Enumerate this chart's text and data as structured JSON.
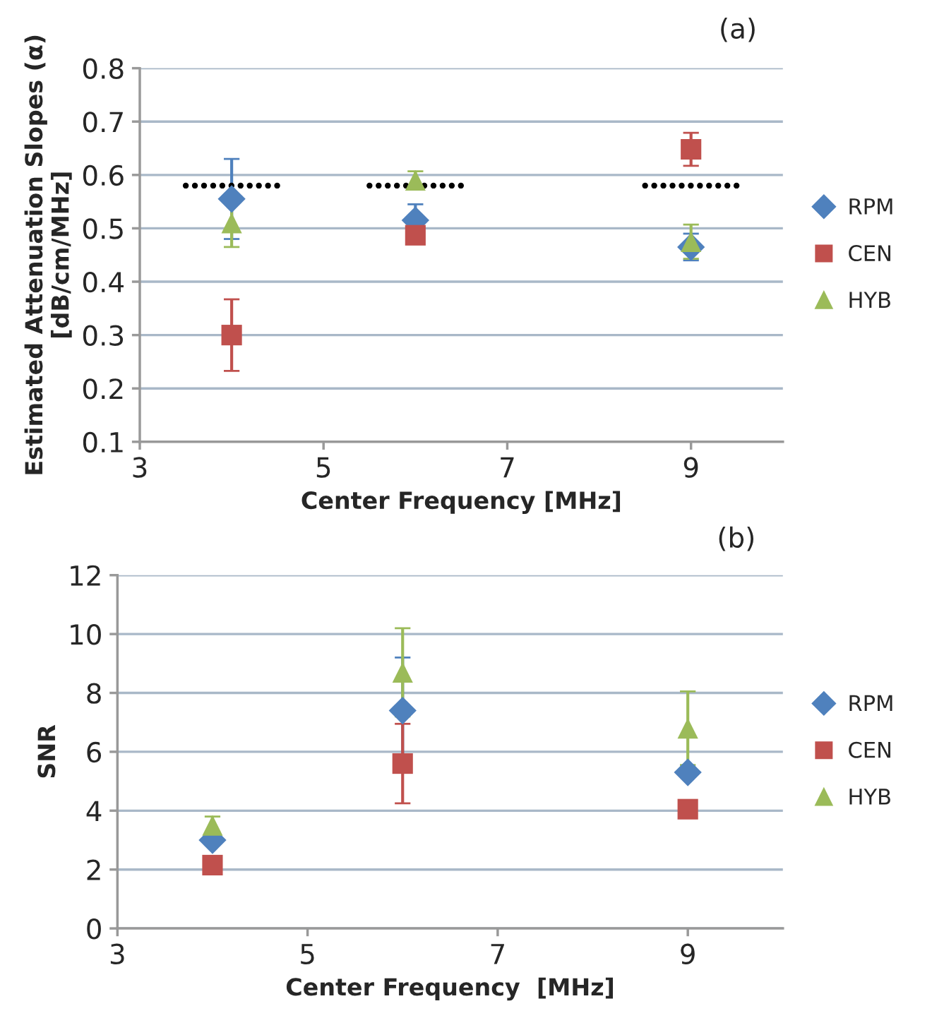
{
  "chart_data": [
    {
      "type": "scatter",
      "annotations": [
        "(a)"
      ],
      "xlabel": "Center Frequency [MHz]",
      "ylabel": "Estimated Attenuation Slopes (α)\n[dB/cm/MHz]",
      "x": [
        4,
        6,
        9
      ],
      "xlim": [
        3,
        10
      ],
      "xticks": [
        3,
        5,
        7,
        9
      ],
      "ylim": [
        0.1,
        0.8
      ],
      "yticks": [
        0.1,
        0.2,
        0.3,
        0.4,
        0.5,
        0.6,
        0.7,
        0.8
      ],
      "grid": "y",
      "legend": "right",
      "series": [
        {
          "name": "RPM",
          "color": "#4f81bd",
          "marker": "diamond",
          "values": [
            0.555,
            0.515,
            0.465
          ],
          "errors": [
            0.075,
            0.03,
            0.025
          ]
        },
        {
          "name": "CEN",
          "color": "#c0504d",
          "marker": "square",
          "values": [
            0.3,
            0.487,
            0.648
          ],
          "errors": [
            0.067,
            null,
            0.031
          ]
        },
        {
          "name": "HYB",
          "color": "#9bbb59",
          "marker": "triangle",
          "values": [
            0.51,
            0.59,
            0.475
          ],
          "errors": [
            0.045,
            0.017,
            0.032
          ]
        },
        {
          "type": "line",
          "color": "#000000",
          "line_style": "dotted",
          "x": [
            3.5,
            4.5
          ],
          "values": [
            0.58,
            0.58
          ]
        },
        {
          "type": "line",
          "color": "#000000",
          "line_style": "dotted",
          "x": [
            5.5,
            6.5
          ],
          "values": [
            0.58,
            0.58
          ]
        },
        {
          "type": "line",
          "color": "#000000",
          "line_style": "dotted",
          "x": [
            8.5,
            9.5
          ],
          "values": [
            0.58,
            0.58
          ]
        }
      ]
    },
    {
      "type": "scatter",
      "annotations": [
        "(b)"
      ],
      "xlabel": "Center Frequency  [MHz]",
      "ylabel": "SNR",
      "x": [
        4,
        6,
        9
      ],
      "xlim": [
        3,
        10
      ],
      "xticks": [
        3,
        5,
        7,
        9
      ],
      "ylim": [
        0,
        12
      ],
      "yticks": [
        0,
        2,
        4,
        6,
        8,
        10,
        12
      ],
      "grid": "y",
      "legend": "right",
      "series": [
        {
          "name": "RPM",
          "color": "#4f81bd",
          "marker": "diamond",
          "values": [
            3.0,
            7.4,
            5.3
          ],
          "errors": [
            null,
            1.8,
            null
          ]
        },
        {
          "name": "CEN",
          "color": "#c0504d",
          "marker": "square",
          "values": [
            2.15,
            5.6,
            4.05
          ],
          "errors": [
            0.3,
            1.35,
            null
          ]
        },
        {
          "name": "HYB",
          "color": "#9bbb59",
          "marker": "triangle",
          "values": [
            3.5,
            8.7,
            6.8
          ],
          "errors": [
            0.3,
            1.5,
            1.25
          ]
        }
      ]
    }
  ]
}
